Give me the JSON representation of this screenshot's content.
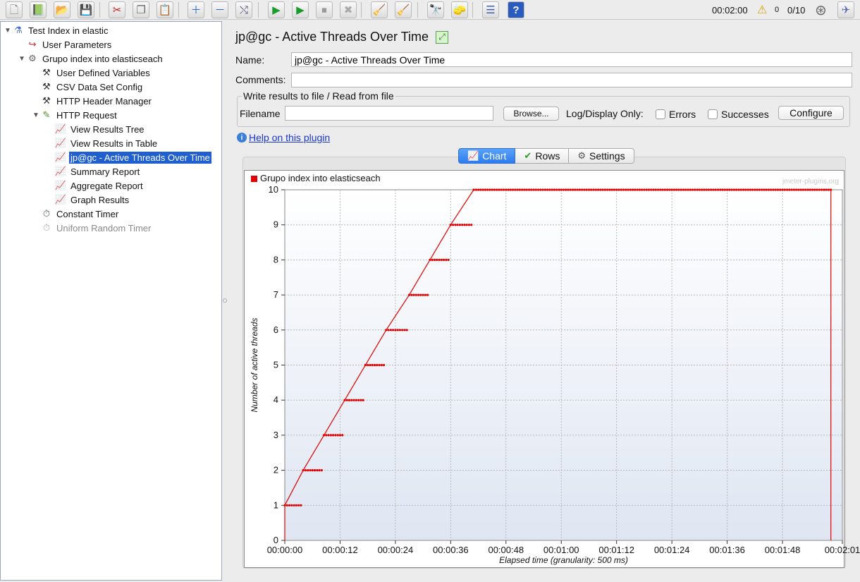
{
  "toolbar": {
    "buttons": [
      {
        "name": "new-icon",
        "glyph": "🗋"
      },
      {
        "name": "templates-icon",
        "glyph": "📗"
      },
      {
        "name": "open-icon",
        "glyph": "📂"
      },
      {
        "name": "save-icon",
        "glyph": "💾"
      },
      {
        "name": "cut-icon",
        "glyph": "✂"
      },
      {
        "name": "copy-icon",
        "glyph": "❐"
      },
      {
        "name": "paste-icon",
        "glyph": "📋"
      },
      {
        "name": "expand-all-icon",
        "glyph": "＋"
      },
      {
        "name": "collapse-all-icon",
        "glyph": "－"
      },
      {
        "name": "toggle-icon",
        "glyph": "⤭"
      },
      {
        "name": "start-icon",
        "glyph": "▶"
      },
      {
        "name": "start-no-pauses-icon",
        "glyph": "▶"
      },
      {
        "name": "stop-icon",
        "glyph": "⏹"
      },
      {
        "name": "shutdown-icon",
        "glyph": "✖"
      },
      {
        "name": "clear-icon",
        "glyph": "🧹"
      },
      {
        "name": "clear-all-icon",
        "glyph": "🧹"
      },
      {
        "name": "search-icon",
        "glyph": "🔭"
      },
      {
        "name": "reset-search-icon",
        "glyph": "🧽"
      },
      {
        "name": "function-helper-icon",
        "glyph": "☰"
      },
      {
        "name": "help-icon",
        "glyph": "?"
      }
    ],
    "elapsed": "00:02:00",
    "warnings": "0",
    "threads": "0/10"
  },
  "tree": [
    {
      "label": "Test Index in elastic",
      "icon": "flask-icon",
      "glyph": "⚗",
      "level": 0,
      "twisty": "▼"
    },
    {
      "label": "User Parameters",
      "icon": "user-parameters-icon",
      "glyph": "↪",
      "level": 1,
      "twisty": ""
    },
    {
      "label": "Grupo index into elasticseach",
      "icon": "thread-group-icon",
      "glyph": "⚙",
      "level": 1,
      "twisty": "▼"
    },
    {
      "label": "User Defined Variables",
      "icon": "config-wrench-icon",
      "glyph": "⚒",
      "level": 2,
      "twisty": ""
    },
    {
      "label": "CSV Data Set Config",
      "icon": "config-wrench-icon",
      "glyph": "⚒",
      "level": 2,
      "twisty": ""
    },
    {
      "label": "HTTP Header Manager",
      "icon": "config-wrench-icon",
      "glyph": "⚒",
      "level": 2,
      "twisty": ""
    },
    {
      "label": "HTTP Request",
      "icon": "sampler-pipette-icon",
      "glyph": "✎",
      "level": 2,
      "twisty": "▼"
    },
    {
      "label": "View Results Tree",
      "icon": "listener-graph-icon",
      "glyph": "📈",
      "level": 3,
      "twisty": ""
    },
    {
      "label": "View Results in Table",
      "icon": "listener-graph-icon",
      "glyph": "📈",
      "level": 3,
      "twisty": ""
    },
    {
      "label": "jp@gc - Active Threads Over Time",
      "icon": "listener-graph-icon",
      "glyph": "📈",
      "level": 3,
      "twisty": "",
      "selected": true
    },
    {
      "label": "Summary Report",
      "icon": "listener-graph-icon",
      "glyph": "📈",
      "level": 3,
      "twisty": ""
    },
    {
      "label": "Aggregate Report",
      "icon": "listener-graph-icon",
      "glyph": "📈",
      "level": 3,
      "twisty": ""
    },
    {
      "label": "Graph Results",
      "icon": "listener-graph-icon",
      "glyph": "📈",
      "level": 3,
      "twisty": ""
    },
    {
      "label": "Constant Timer",
      "icon": "timer-clock-icon",
      "glyph": "⏱",
      "level": 2,
      "twisty": ""
    },
    {
      "label": "Uniform Random Timer",
      "icon": "timer-clock-icon",
      "glyph": "⏱",
      "level": 2,
      "twisty": "",
      "disabled": true
    }
  ],
  "panel": {
    "title": "jp@gc - Active Threads Over Time",
    "name_label": "Name:",
    "name_value": "jp@gc - Active Threads Over Time",
    "comments_label": "Comments:",
    "comments_value": "",
    "file_group_label": "Write results to file / Read from file",
    "filename_label": "Filename",
    "filename_value": "",
    "browse_label": "Browse...",
    "log_display_label": "Log/Display Only:",
    "errors_label": "Errors",
    "successes_label": "Successes",
    "configure_label": "Configure",
    "help_link": "Help on this plugin",
    "tabs": [
      {
        "label": "Chart",
        "icon": "chart-icon",
        "glyph": "📈",
        "active": true
      },
      {
        "label": "Rows",
        "icon": "checkmark-icon",
        "glyph": "✔",
        "active": false
      },
      {
        "label": "Settings",
        "icon": "gear-icon",
        "glyph": "⚙",
        "active": false
      }
    ]
  },
  "chart_data": {
    "type": "line",
    "watermark": "jmeter-plugins.org",
    "xlabel": "Elapsed time (granularity: 500 ms)",
    "ylabel": "Number of active threads",
    "x_tick_labels": [
      "00:00:00",
      "00:00:12",
      "00:00:24",
      "00:00:36",
      "00:00:48",
      "00:01:00",
      "00:01:12",
      "00:01:24",
      "00:01:36",
      "00:01:48",
      "00:02:01"
    ],
    "x_tick_seconds": [
      0,
      12,
      24,
      36,
      48,
      60,
      72,
      84,
      96,
      108,
      121
    ],
    "xlim": [
      0,
      121
    ],
    "ylim": [
      0,
      10
    ],
    "y_ticks": [
      0,
      1,
      2,
      3,
      4,
      5,
      6,
      7,
      8,
      9,
      10
    ],
    "series": [
      {
        "name": "Grupo index into elasticseach",
        "color": "#e00000",
        "steps": [
          {
            "x": 0,
            "y": 0
          },
          {
            "x": 0,
            "y": 1
          },
          {
            "x": 4,
            "y": 2
          },
          {
            "x": 8.5,
            "y": 3
          },
          {
            "x": 13,
            "y": 4
          },
          {
            "x": 17.5,
            "y": 5
          },
          {
            "x": 22,
            "y": 6
          },
          {
            "x": 27,
            "y": 7
          },
          {
            "x": 31.5,
            "y": 8
          },
          {
            "x": 36,
            "y": 9
          },
          {
            "x": 41,
            "y": 10
          },
          {
            "x": 118.5,
            "y": 10
          },
          {
            "x": 118.5,
            "y": 0
          }
        ]
      }
    ]
  }
}
